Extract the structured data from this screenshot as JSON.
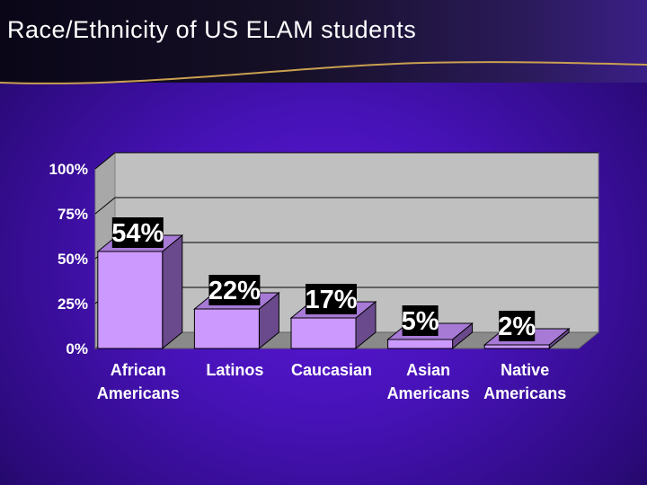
{
  "title": "Race/Ethnicity of US ELAM students",
  "colors": {
    "bar_front": "#cc99ff",
    "bar_side": "#6a4a8c",
    "bar_top": "#a77ad6",
    "wall": "#c0c0c0",
    "floor": "#8a8a8a",
    "label_box": "#000000",
    "title_rule": "#c9a050"
  },
  "chart_data": {
    "type": "bar",
    "title": "",
    "xlabel": "",
    "ylabel": "",
    "ylim": [
      0,
      100
    ],
    "yticks": [
      "0%",
      "25%",
      "50%",
      "75%",
      "100%"
    ],
    "categories": [
      [
        "African",
        "Americans"
      ],
      [
        "Latinos"
      ],
      [
        "Caucasian"
      ],
      [
        "Asian",
        "Americans"
      ],
      [
        "Native",
        "Americans"
      ]
    ],
    "values": [
      54,
      22,
      17,
      5,
      2
    ],
    "data_labels": [
      "54%",
      "22%",
      "17%",
      "5%",
      "2%"
    ],
    "grid": true,
    "legend": "none"
  }
}
